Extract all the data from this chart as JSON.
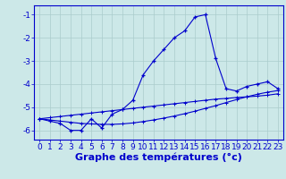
{
  "xlabel": "Graphe des températures (°c)",
  "hours": [
    0,
    1,
    2,
    3,
    4,
    5,
    6,
    7,
    8,
    9,
    10,
    11,
    12,
    13,
    14,
    15,
    16,
    17,
    18,
    19,
    20,
    21,
    22,
    23
  ],
  "temp_curve": [
    -5.5,
    -5.6,
    -5.7,
    -6.0,
    -6.0,
    -5.5,
    -5.9,
    -5.3,
    -5.1,
    -4.7,
    -3.6,
    -3.0,
    -2.5,
    -2.0,
    -1.7,
    -1.1,
    -1.0,
    -2.9,
    -4.2,
    -4.3,
    -4.1,
    -4.0,
    -3.9,
    -4.2
  ],
  "min_line": [
    -5.5,
    -5.55,
    -5.6,
    -5.65,
    -5.7,
    -5.72,
    -5.74,
    -5.74,
    -5.72,
    -5.68,
    -5.62,
    -5.55,
    -5.47,
    -5.38,
    -5.28,
    -5.17,
    -5.05,
    -4.93,
    -4.8,
    -4.67,
    -4.55,
    -4.44,
    -4.35,
    -4.28
  ],
  "max_line": [
    -5.5,
    -5.45,
    -5.4,
    -5.35,
    -5.3,
    -5.25,
    -5.2,
    -5.15,
    -5.1,
    -5.05,
    -5.0,
    -4.95,
    -4.9,
    -4.85,
    -4.8,
    -4.75,
    -4.7,
    -4.65,
    -4.62,
    -4.58,
    -4.55,
    -4.52,
    -4.48,
    -4.42
  ],
  "line_color": "#0000cc",
  "bg_color": "#cce8e8",
  "grid_color": "#aacccc",
  "ylim": [
    -6.4,
    -0.6
  ],
  "yticks": [
    -6,
    -5,
    -4,
    -3,
    -2,
    -1
  ],
  "xlabel_fontsize": 8,
  "tick_fontsize": 6.5
}
